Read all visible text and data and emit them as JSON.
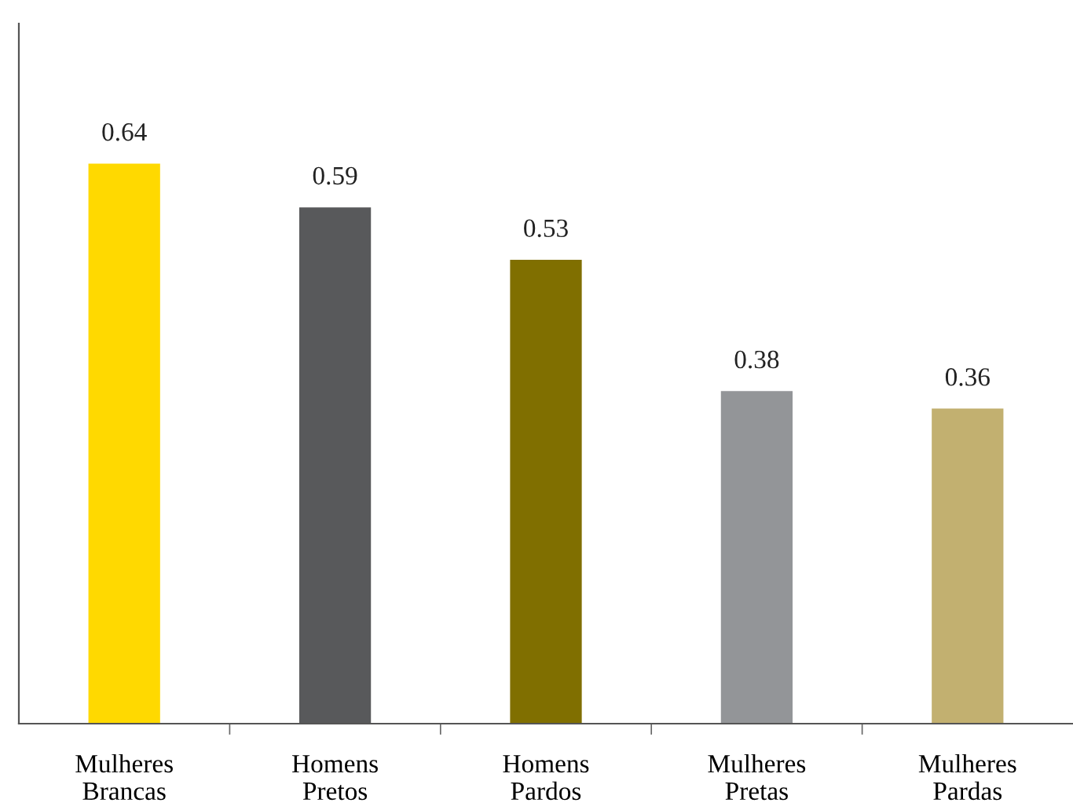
{
  "chart_data": {
    "type": "bar",
    "categories": [
      "Mulheres\nBrancas",
      "Homens\nPretos",
      "Homens\nPardos",
      "Mulheres\nPretas",
      "Mulheres\nPardas"
    ],
    "values": [
      0.64,
      0.59,
      0.53,
      0.38,
      0.36
    ],
    "colors": [
      "#ffd900",
      "#58595b",
      "#806f00",
      "#939598",
      "#c2b070"
    ],
    "ylim": [
      0,
      0.8
    ],
    "data_labels": true,
    "tick_labels": "x",
    "grid": false
  }
}
